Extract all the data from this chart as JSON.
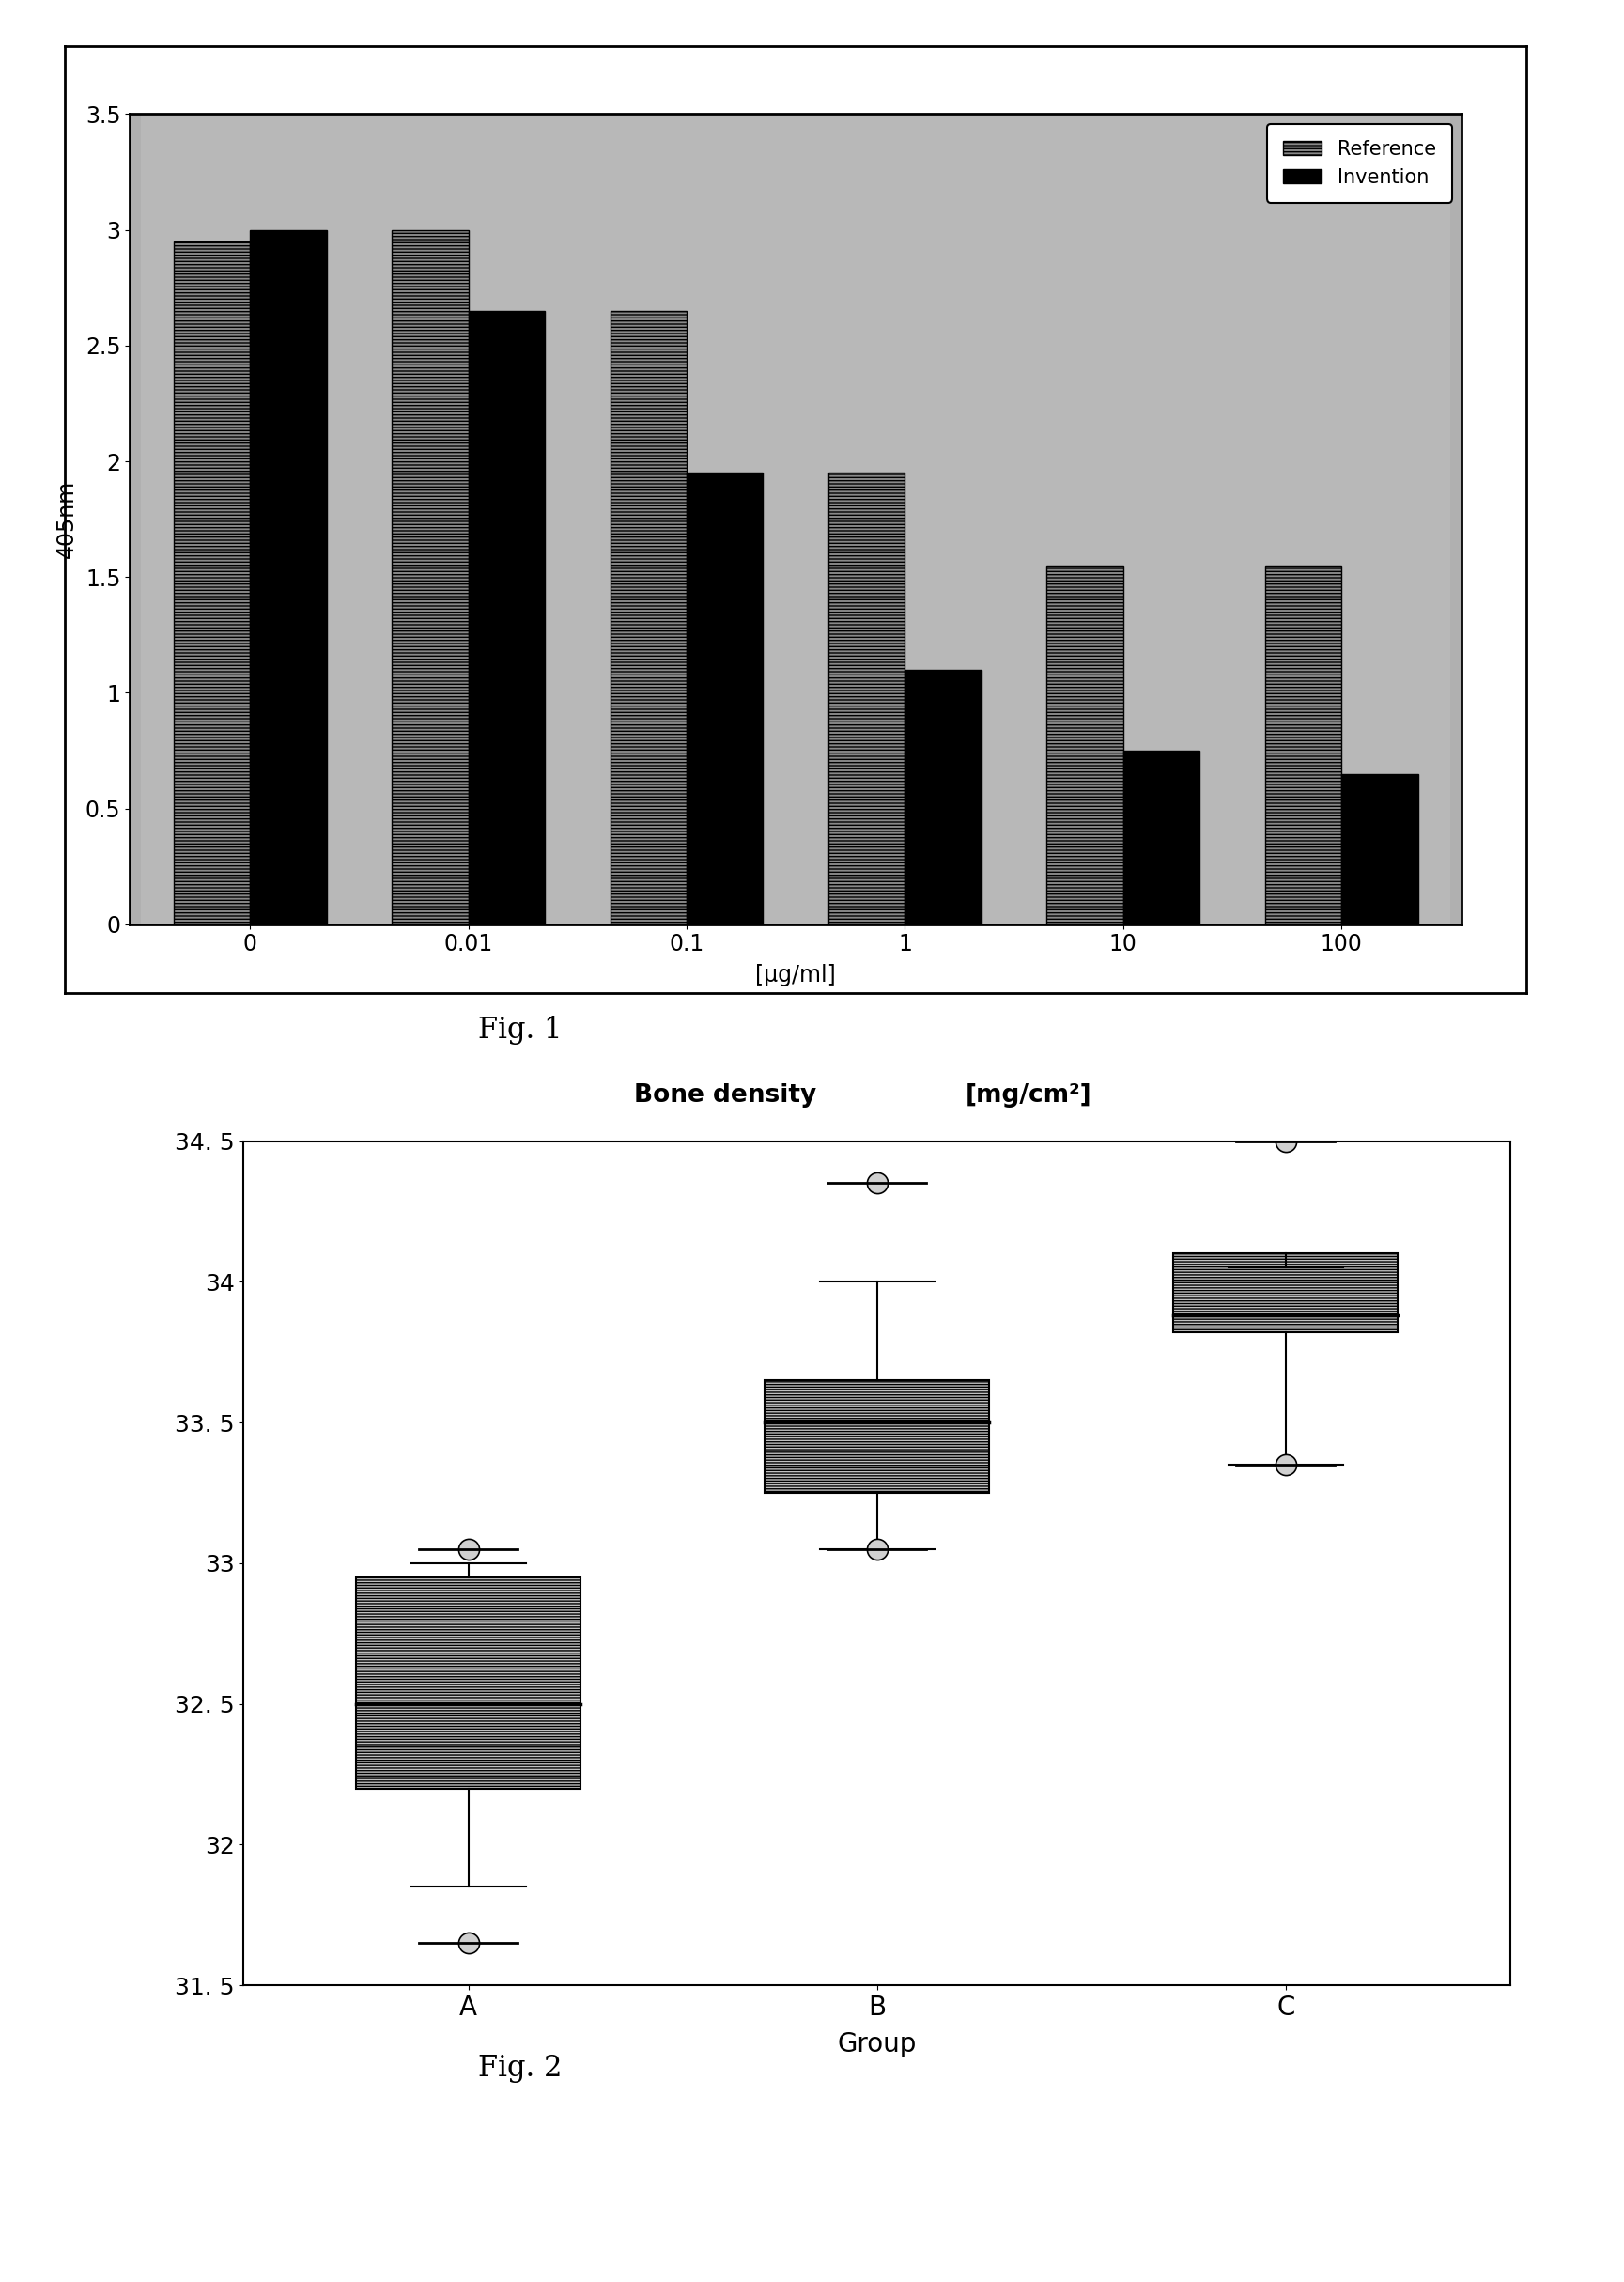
{
  "fig1": {
    "categories": [
      "0",
      "0.01",
      "0.1",
      "1",
      "10",
      "100"
    ],
    "reference_values": [
      2.95,
      3.0,
      2.65,
      1.95,
      1.55,
      1.55
    ],
    "invention_values": [
      3.0,
      2.65,
      1.95,
      1.1,
      0.75,
      0.65
    ],
    "ylabel": "405nm",
    "xlabel": "[μg/ml]",
    "ylim": [
      0,
      3.5
    ],
    "yticks": [
      0,
      0.5,
      1,
      1.5,
      2,
      2.5,
      3,
      3.5
    ],
    "ytick_labels": [
      "0",
      "0.5",
      "1",
      "1.5",
      "2",
      "2.5",
      "3",
      "3.5"
    ],
    "legend_labels": [
      "Reference",
      "Invention"
    ],
    "bg_color": "#b0b0b0",
    "fig_caption": "Fig. 1"
  },
  "fig2": {
    "groups": [
      "A",
      "B",
      "C"
    ],
    "xlabel": "Group",
    "title1": "Bone density",
    "title2": "[mg/cm²]",
    "ylim": [
      31.5,
      34.5
    ],
    "yticks": [
      31.5,
      32.0,
      32.5,
      33.0,
      33.5,
      34.0,
      34.5
    ],
    "ytick_labels": [
      "31. 5",
      "32",
      "32. 5",
      "33",
      "33. 5",
      "34",
      "34. 5"
    ],
    "box_A": {
      "q1": 32.2,
      "median": 32.5,
      "q3": 32.95,
      "whisker_low": 31.85,
      "whisker_high": 33.0,
      "outlier_low": 31.65,
      "outlier_high": 33.05
    },
    "box_B": {
      "q1": 33.25,
      "median": 33.5,
      "q3": 33.65,
      "whisker_low": 33.05,
      "whisker_high": 34.0,
      "outlier_low": 33.05,
      "outlier_high": 34.35
    },
    "box_C": {
      "q1": 33.82,
      "median": 33.88,
      "q3": 34.1,
      "whisker_low": 33.35,
      "whisker_high": 34.05,
      "outlier_low": 33.35,
      "outlier_high": 34.5
    },
    "box_color": "#b8b8b8",
    "fig_caption": "Fig. 2"
  }
}
